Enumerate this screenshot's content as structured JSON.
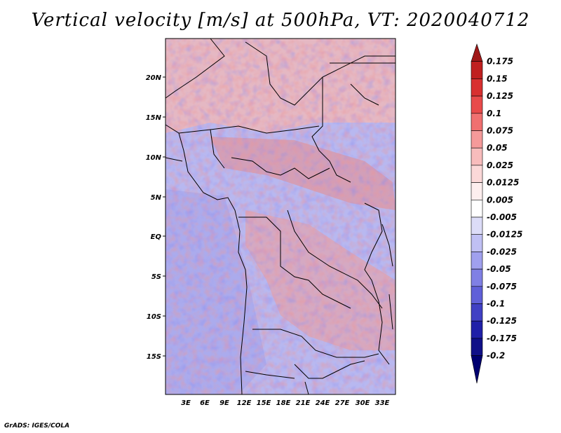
{
  "title": "Vertical velocity [m/s] at 500hPa, VT: 2020040712",
  "credit": "GrADS: IGES/COLA",
  "map": {
    "lat_labels": [
      "20N",
      "15N",
      "10N",
      "5N",
      "EQ",
      "5S",
      "10S",
      "15S"
    ],
    "lon_labels": [
      "3E",
      "6E",
      "9E",
      "12E",
      "15E",
      "18E",
      "21E",
      "24E",
      "27E",
      "30E",
      "33E"
    ],
    "extent": {
      "lon_min": 0,
      "lon_max": 35,
      "lat_min": -19,
      "lat_max": 24
    }
  },
  "colorbar": {
    "labels": [
      "0.175",
      "0.15",
      "0.125",
      "0.1",
      "0.075",
      "0.05",
      "0.025",
      "0.0125",
      "0.005",
      "-0.005",
      "-0.0125",
      "-0.025",
      "-0.05",
      "-0.075",
      "-0.1",
      "-0.125",
      "-0.175",
      "-0.2"
    ],
    "colors": [
      "#a01818",
      "#c02020",
      "#d83030",
      "#e84a4a",
      "#f07070",
      "#f59a9a",
      "#f8bcbc",
      "#fbd8d8",
      "#fdeeee",
      "#ffffff",
      "#dcdcf8",
      "#c0c0f4",
      "#a0a0ee",
      "#8080e4",
      "#6060d8",
      "#4040c4",
      "#2020a8",
      "#101088",
      "#000070"
    ]
  }
}
